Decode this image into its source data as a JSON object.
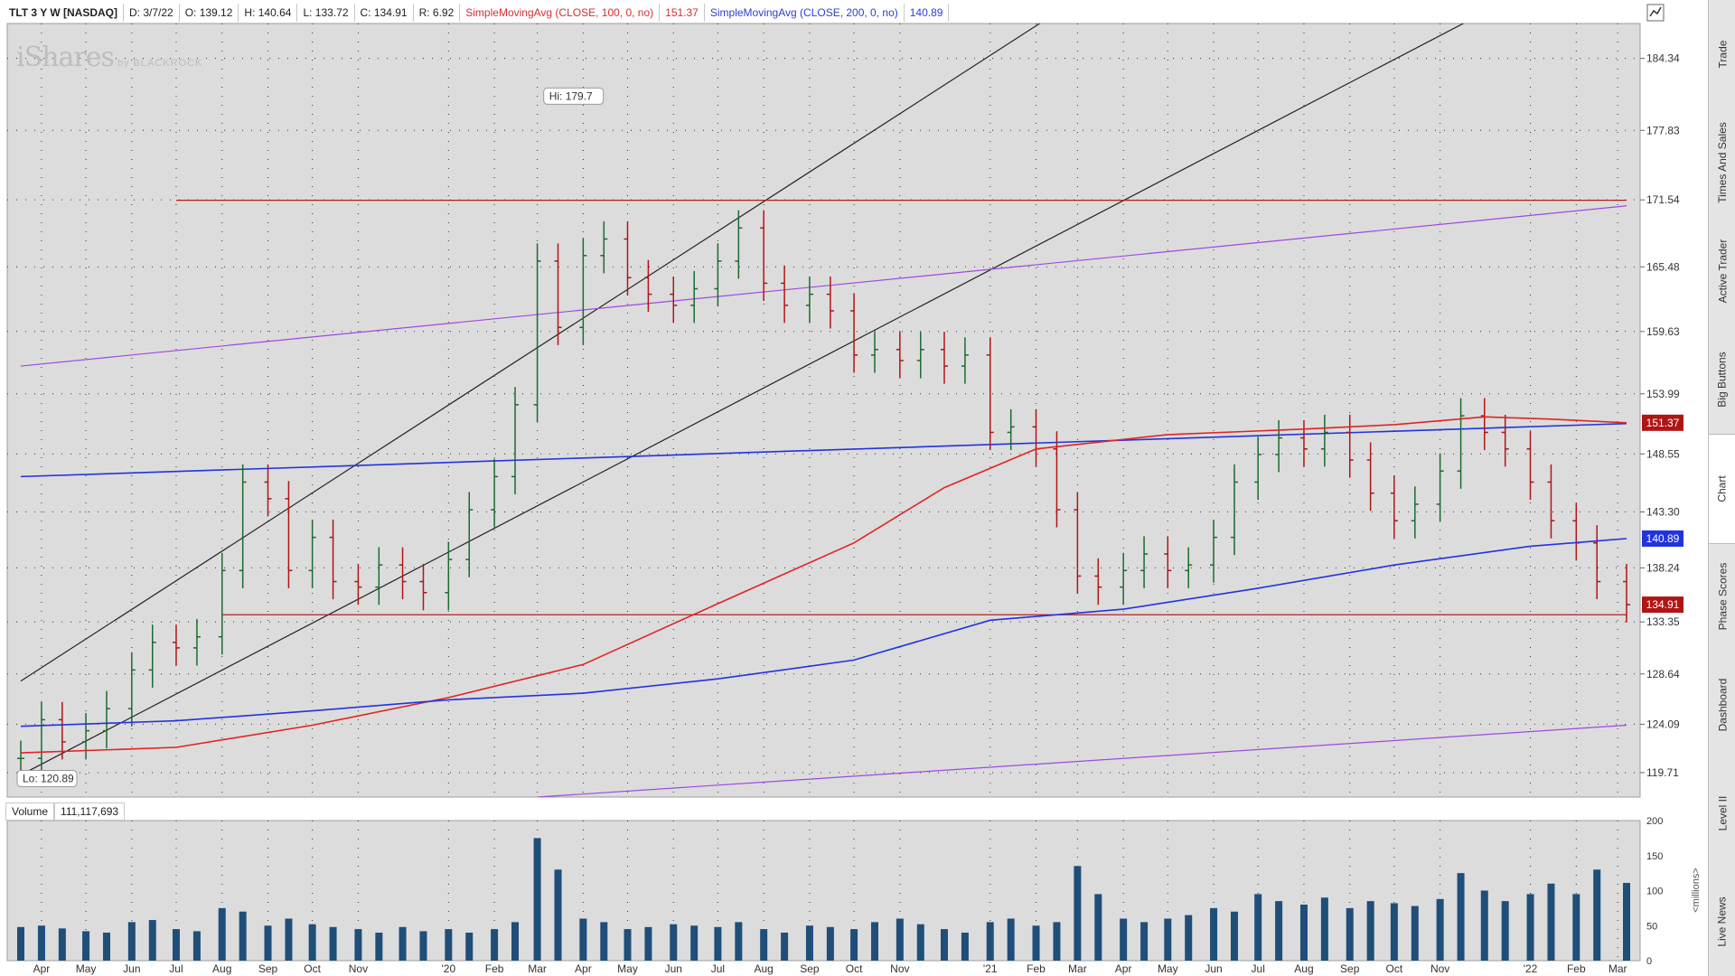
{
  "header": {
    "symbol": "TLT 3 Y W [NASDAQ]",
    "date": "D: 3/7/22",
    "open": "O: 139.12",
    "high": "H: 140.64",
    "low": "L: 133.72",
    "close": "C: 134.91",
    "range": "R: 6.92",
    "sma100_label": "SimpleMovingAvg (CLOSE, 100, 0, no)",
    "sma100_value": "151.37",
    "sma200_label": "SimpleMovingAvg (CLOSE, 200, 0, no)",
    "sma200_value": "140.89"
  },
  "watermark": {
    "brand": "iShares",
    "by": "by BLACKROCK"
  },
  "sidebar": {
    "tabs": [
      "Trade",
      "Times And Sales",
      "Active Trader",
      "Big Buttons",
      "Chart",
      "Phase Scores",
      "Dashboard",
      "Level II",
      "Live News"
    ],
    "active": "Chart"
  },
  "volume_panel": {
    "label": "Volume",
    "value": "111,117,693",
    "unit_label": "<millions>"
  },
  "colors": {
    "background": "#dcdcdc",
    "up": "#1b6b2f",
    "down": "#b01515",
    "sma100": "#e02424",
    "sma200": "#2233dd",
    "channel": "#222222",
    "parallel": "#9d4ae0",
    "hline": "#b02020",
    "volume": "#1f4e79"
  },
  "chart_data": [
    {
      "type": "line",
      "title": "TLT 3 Y W [NASDAQ]",
      "x_type": "time",
      "xlim": [
        "2019-03-18",
        "2022-03-07"
      ],
      "ylim": [
        117.5,
        187.5
      ],
      "y_ticks": [
        119.71,
        124.09,
        128.64,
        133.35,
        138.24,
        143.3,
        148.55,
        153.99,
        159.63,
        165.48,
        171.54,
        177.83,
        184.34
      ],
      "x_tick_labels": [
        {
          "label": "Apr",
          "date": "2019-04-01"
        },
        {
          "label": "May",
          "date": "2019-05-01"
        },
        {
          "label": "Jun",
          "date": "2019-06-01"
        },
        {
          "label": "Jul",
          "date": "2019-07-01"
        },
        {
          "label": "Aug",
          "date": "2019-08-01"
        },
        {
          "label": "Sep",
          "date": "2019-09-01"
        },
        {
          "label": "Oct",
          "date": "2019-10-01"
        },
        {
          "label": "Nov",
          "date": "2019-11-01"
        },
        {
          "label": "'20",
          "date": "2020-01-01"
        },
        {
          "label": "Feb",
          "date": "2020-02-01"
        },
        {
          "label": "Mar",
          "date": "2020-03-01"
        },
        {
          "label": "Apr",
          "date": "2020-04-01"
        },
        {
          "label": "May",
          "date": "2020-05-01"
        },
        {
          "label": "Jun",
          "date": "2020-06-01"
        },
        {
          "label": "Jul",
          "date": "2020-07-01"
        },
        {
          "label": "Aug",
          "date": "2020-08-01"
        },
        {
          "label": "Sep",
          "date": "2020-09-01"
        },
        {
          "label": "Oct",
          "date": "2020-10-01"
        },
        {
          "label": "Nov",
          "date": "2020-11-01"
        },
        {
          "label": "'21",
          "date": "2021-01-01"
        },
        {
          "label": "Feb",
          "date": "2021-02-01"
        },
        {
          "label": "Mar",
          "date": "2021-03-01"
        },
        {
          "label": "Apr",
          "date": "2021-04-01"
        },
        {
          "label": "May",
          "date": "2021-05-01"
        },
        {
          "label": "Jun",
          "date": "2021-06-01"
        },
        {
          "label": "Jul",
          "date": "2021-07-01"
        },
        {
          "label": "Aug",
          "date": "2021-08-01"
        },
        {
          "label": "Sep",
          "date": "2021-09-01"
        },
        {
          "label": "Oct",
          "date": "2021-10-01"
        },
        {
          "label": "Nov",
          "date": "2021-11-01"
        },
        {
          "label": "'22",
          "date": "2022-01-01"
        },
        {
          "label": "Feb",
          "date": "2022-02-01"
        },
        {
          "label": "Mar",
          "date": "2022-03-01"
        }
      ],
      "grid": true,
      "annotations": [
        {
          "text": "Hi: 179.7",
          "date": "2020-03-09",
          "value": 179.7
        },
        {
          "text": "Lo: 120.89",
          "date": "2019-03-18",
          "value": 120.89
        }
      ],
      "price_badges": [
        {
          "value": 151.37,
          "text": "151.37",
          "series": "sma100"
        },
        {
          "value": 140.89,
          "text": "140.89",
          "series": "sma200"
        },
        {
          "value": 134.91,
          "text": "134.91",
          "series": "close"
        }
      ],
      "series": [
        {
          "name": "TLT",
          "kind": "ohlc_weekly_close",
          "points": [
            [
              "2019-03-18",
              121.0
            ],
            [
              "2019-04-01",
              124.5
            ],
            [
              "2019-04-15",
              122.5
            ],
            [
              "2019-05-01",
              123.5
            ],
            [
              "2019-05-15",
              125.5
            ],
            [
              "2019-06-01",
              129.0
            ],
            [
              "2019-06-15",
              131.5
            ],
            [
              "2019-07-01",
              131.0
            ],
            [
              "2019-07-15",
              132.0
            ],
            [
              "2019-08-01",
              138.0
            ],
            [
              "2019-08-15",
              146.0
            ],
            [
              "2019-09-01",
              144.5
            ],
            [
              "2019-09-15",
              138.0
            ],
            [
              "2019-10-01",
              141.0
            ],
            [
              "2019-10-15",
              137.0
            ],
            [
              "2019-11-01",
              136.5
            ],
            [
              "2019-11-15",
              138.5
            ],
            [
              "2019-12-01",
              137.0
            ],
            [
              "2019-12-15",
              136.0
            ],
            [
              "2020-01-01",
              139.0
            ],
            [
              "2020-01-15",
              143.5
            ],
            [
              "2020-02-01",
              146.5
            ],
            [
              "2020-02-15",
              153.0
            ],
            [
              "2020-03-01",
              166.0
            ],
            [
              "2020-03-15",
              160.0
            ],
            [
              "2020-04-01",
              166.5
            ],
            [
              "2020-04-15",
              168.0
            ],
            [
              "2020-05-01",
              164.5
            ],
            [
              "2020-05-15",
              163.0
            ],
            [
              "2020-06-01",
              162.0
            ],
            [
              "2020-06-15",
              163.5
            ],
            [
              "2020-07-01",
              166.0
            ],
            [
              "2020-07-15",
              169.0
            ],
            [
              "2020-08-01",
              164.0
            ],
            [
              "2020-08-15",
              162.0
            ],
            [
              "2020-09-01",
              163.0
            ],
            [
              "2020-09-15",
              161.5
            ],
            [
              "2020-10-01",
              157.5
            ],
            [
              "2020-10-15",
              158.0
            ],
            [
              "2020-11-01",
              157.0
            ],
            [
              "2020-11-15",
              158.0
            ],
            [
              "2020-12-01",
              156.5
            ],
            [
              "2020-12-15",
              157.5
            ],
            [
              "2021-01-01",
              150.5
            ],
            [
              "2021-01-15",
              151.0
            ],
            [
              "2021-02-01",
              149.0
            ],
            [
              "2021-02-15",
              143.5
            ],
            [
              "2021-03-01",
              137.5
            ],
            [
              "2021-03-15",
              136.5
            ],
            [
              "2021-04-01",
              138.0
            ],
            [
              "2021-04-15",
              139.5
            ],
            [
              "2021-05-01",
              138.0
            ],
            [
              "2021-05-15",
              138.5
            ],
            [
              "2021-06-01",
              141.0
            ],
            [
              "2021-06-15",
              146.0
            ],
            [
              "2021-07-01",
              148.5
            ],
            [
              "2021-07-15",
              150.0
            ],
            [
              "2021-08-01",
              149.0
            ],
            [
              "2021-08-15",
              150.5
            ],
            [
              "2021-09-01",
              148.0
            ],
            [
              "2021-09-15",
              145.0
            ],
            [
              "2021-10-01",
              142.5
            ],
            [
              "2021-10-15",
              144.0
            ],
            [
              "2021-11-01",
              147.0
            ],
            [
              "2021-11-15",
              152.0
            ],
            [
              "2021-12-01",
              150.5
            ],
            [
              "2021-12-15",
              149.0
            ],
            [
              "2022-01-01",
              146.0
            ],
            [
              "2022-01-15",
              142.5
            ],
            [
              "2022-02-01",
              140.5
            ],
            [
              "2022-02-15",
              137.0
            ],
            [
              "2022-03-07",
              134.91
            ]
          ]
        },
        {
          "name": "SimpleMovingAvg (CLOSE, 100, 0, no)",
          "color_key": "sma100",
          "points": [
            [
              "2019-03-18",
              121.5
            ],
            [
              "2019-07-01",
              122.0
            ],
            [
              "2019-10-01",
              124.0
            ],
            [
              "2020-01-01",
              126.5
            ],
            [
              "2020-04-01",
              129.5
            ],
            [
              "2020-07-01",
              135.0
            ],
            [
              "2020-10-01",
              140.5
            ],
            [
              "2020-12-01",
              145.5
            ],
            [
              "2021-02-01",
              149.0
            ],
            [
              "2021-05-01",
              150.3
            ],
            [
              "2021-08-01",
              150.8
            ],
            [
              "2021-10-01",
              151.2
            ],
            [
              "2021-12-01",
              151.9
            ],
            [
              "2022-01-15",
              151.7
            ],
            [
              "2022-03-07",
              151.37
            ]
          ]
        },
        {
          "name": "SimpleMovingAvg (CLOSE, 200, 0, no)",
          "color_key": "sma200",
          "points": [
            [
              "2019-03-18",
              123.9
            ],
            [
              "2019-07-01",
              124.4
            ],
            [
              "2019-10-01",
              125.3
            ],
            [
              "2020-01-01",
              126.3
            ],
            [
              "2020-04-01",
              126.9
            ],
            [
              "2020-07-01",
              128.2
            ],
            [
              "2020-10-01",
              129.9
            ],
            [
              "2021-01-01",
              133.5
            ],
            [
              "2021-04-01",
              134.5
            ],
            [
              "2021-07-01",
              136.4
            ],
            [
              "2021-10-01",
              138.5
            ],
            [
              "2022-01-01",
              140.2
            ],
            [
              "2022-03-07",
              140.89
            ]
          ]
        }
      ],
      "drawings": [
        {
          "kind": "trendline",
          "name": "channel-upper",
          "from": [
            "2019-03-18",
            128.0
          ],
          "to": [
            "2021-02-15",
            188.5
          ]
        },
        {
          "kind": "trendline",
          "name": "channel-lower",
          "from": [
            "2019-03-18",
            119.5
          ],
          "to": [
            "2021-12-01",
            188.5
          ]
        },
        {
          "kind": "trendline",
          "name": "parallel-upper",
          "from": [
            "2019-03-18",
            156.5
          ],
          "to": [
            "2022-03-07",
            171.0
          ]
        },
        {
          "kind": "trendline",
          "name": "parallel-lower",
          "from": [
            "2020-03-01",
            117.5
          ],
          "to": [
            "2022-03-07",
            124.0
          ]
        },
        {
          "kind": "trendline",
          "name": "median-line",
          "from": [
            "2019-03-18",
            146.5
          ],
          "to": [
            "2022-03-07",
            151.3
          ]
        },
        {
          "kind": "hline",
          "name": "resistance",
          "from_date": "2019-07-01",
          "to_date": "2022-03-07",
          "value": 171.5
        },
        {
          "kind": "hline",
          "name": "support",
          "from_date": "2019-08-01",
          "to_date": "2022-03-07",
          "value": 134.0
        }
      ]
    },
    {
      "type": "bar",
      "title": "Volume",
      "unit": "millions",
      "ylim": [
        0,
        200
      ],
      "y_ticks": [
        0,
        50,
        100,
        150,
        200
      ],
      "x": [
        "2019-03-18",
        "2019-04-01",
        "2019-04-15",
        "2019-05-01",
        "2019-05-15",
        "2019-06-01",
        "2019-06-15",
        "2019-07-01",
        "2019-07-15",
        "2019-08-01",
        "2019-08-15",
        "2019-09-01",
        "2019-09-15",
        "2019-10-01",
        "2019-10-15",
        "2019-11-01",
        "2019-11-15",
        "2019-12-01",
        "2019-12-15",
        "2020-01-01",
        "2020-01-15",
        "2020-02-01",
        "2020-02-15",
        "2020-03-01",
        "2020-03-15",
        "2020-04-01",
        "2020-04-15",
        "2020-05-01",
        "2020-05-15",
        "2020-06-01",
        "2020-06-15",
        "2020-07-01",
        "2020-07-15",
        "2020-08-01",
        "2020-08-15",
        "2020-09-01",
        "2020-09-15",
        "2020-10-01",
        "2020-10-15",
        "2020-11-01",
        "2020-11-15",
        "2020-12-01",
        "2020-12-15",
        "2021-01-01",
        "2021-01-15",
        "2021-02-01",
        "2021-02-15",
        "2021-03-01",
        "2021-03-15",
        "2021-04-01",
        "2021-04-15",
        "2021-05-01",
        "2021-05-15",
        "2021-06-01",
        "2021-06-15",
        "2021-07-01",
        "2021-07-15",
        "2021-08-01",
        "2021-08-15",
        "2021-09-01",
        "2021-09-15",
        "2021-10-01",
        "2021-10-15",
        "2021-11-01",
        "2021-11-15",
        "2021-12-01",
        "2021-12-15",
        "2022-01-01",
        "2022-01-15",
        "2022-02-01",
        "2022-02-15",
        "2022-03-07"
      ],
      "values": [
        48,
        50,
        46,
        42,
        40,
        55,
        58,
        45,
        42,
        75,
        70,
        50,
        60,
        52,
        48,
        45,
        40,
        48,
        42,
        45,
        40,
        45,
        55,
        175,
        130,
        60,
        55,
        45,
        48,
        52,
        50,
        48,
        55,
        45,
        40,
        50,
        48,
        45,
        55,
        60,
        52,
        45,
        40,
        55,
        60,
        50,
        55,
        135,
        95,
        60,
        55,
        60,
        65,
        75,
        70,
        95,
        85,
        80,
        90,
        75,
        85,
        82,
        78,
        88,
        125,
        100,
        85,
        95,
        110,
        95,
        130,
        111
      ]
    }
  ]
}
